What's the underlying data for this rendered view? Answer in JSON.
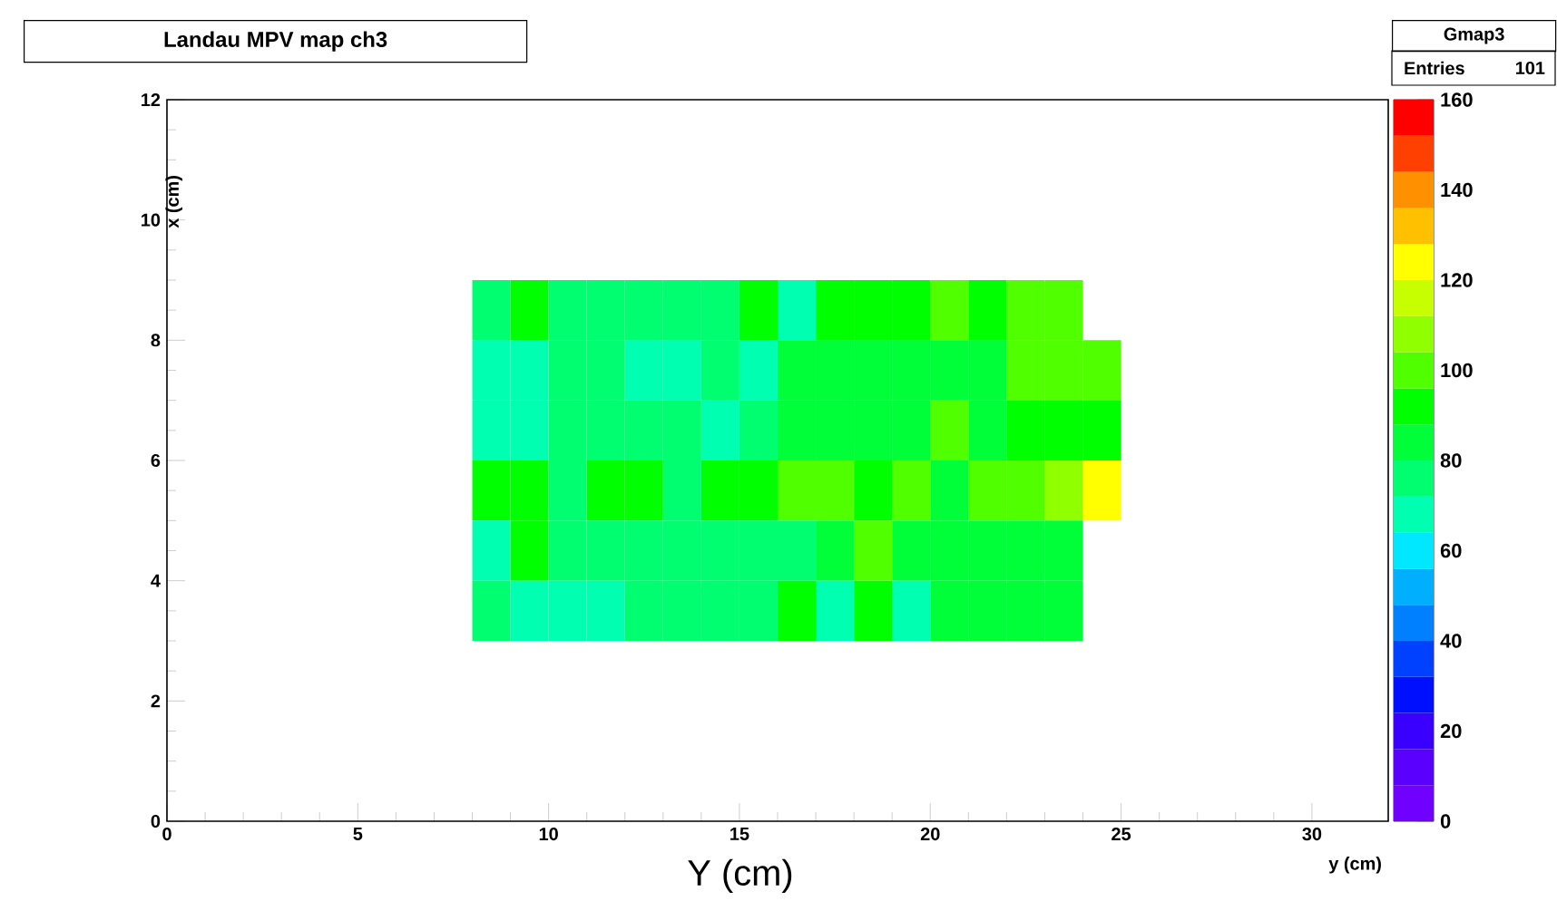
{
  "chart_data": {
    "type": "heatmap",
    "title": "Landau MPV map ch3",
    "xlabel": "y (cm)",
    "ylabel": "x (cm)",
    "annotations": [
      "Gmap3",
      "Entries",
      "101",
      "Y (cm)"
    ],
    "x": [
      8.5,
      9.5,
      10.5,
      11.5,
      12.5,
      13.5,
      14.5,
      15.5,
      16.5,
      17.5,
      18.5,
      19.5,
      20.5,
      21.5,
      22.5,
      23.5,
      24.5
    ],
    "y": [
      8.5,
      7.5,
      6.5,
      5.5,
      4.5,
      3.5
    ],
    "xlim": [
      0,
      32
    ],
    "xticks": [
      0,
      5,
      10,
      15,
      20,
      25,
      30
    ],
    "ylim": [
      0,
      12
    ],
    "yticks": [
      0,
      2,
      4,
      6,
      8,
      10,
      12
    ],
    "clim": [
      0,
      160
    ],
    "cticks": [
      0,
      20,
      40,
      60,
      80,
      100,
      120,
      140,
      160
    ],
    "cells": [
      [
        76,
        92,
        76,
        76,
        76,
        76,
        76,
        92,
        68,
        92,
        92,
        92,
        100,
        92,
        100,
        100,
        null
      ],
      [
        68,
        68,
        76,
        76,
        64,
        68,
        76,
        68,
        84,
        84,
        84,
        84,
        84,
        84,
        100,
        100,
        100
      ],
      [
        68,
        68,
        76,
        76,
        76,
        76,
        68,
        76,
        84,
        84,
        84,
        84,
        100,
        84,
        92,
        92,
        92
      ],
      [
        92,
        92,
        76,
        92,
        92,
        76,
        92,
        92,
        100,
        100,
        92,
        100,
        84,
        100,
        100,
        108,
        120
      ],
      [
        68,
        92,
        76,
        76,
        76,
        76,
        76,
        76,
        76,
        84,
        100,
        84,
        84,
        84,
        84,
        84,
        null
      ],
      [
        76,
        68,
        68,
        68,
        76,
        76,
        76,
        76,
        92,
        68,
        92,
        68,
        84,
        84,
        84,
        84,
        null
      ]
    ]
  }
}
